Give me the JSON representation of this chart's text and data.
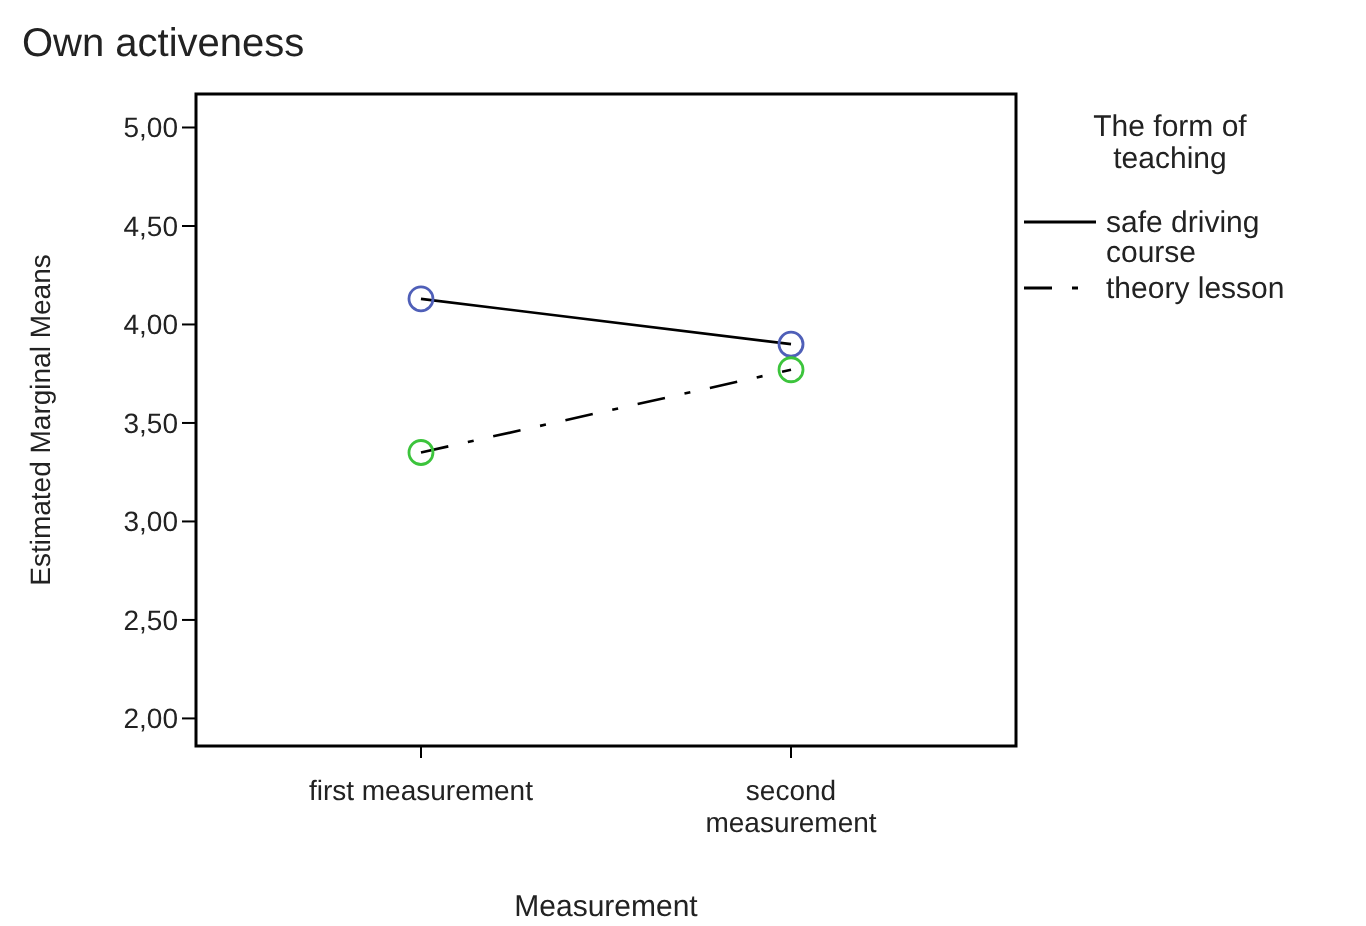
{
  "chart_data": {
    "type": "line",
    "title": "Own activeness",
    "xlabel": "Measurement",
    "ylabel": "Estimated Marginal Means",
    "legend_title": "The form of teaching",
    "categories": [
      "first measurement",
      "second measurement"
    ],
    "series": [
      {
        "name": "safe driving course",
        "color": "#4f5fb8",
        "values": [
          4.13,
          3.9
        ],
        "line_style": "solid"
      },
      {
        "name": "theory lesson",
        "color": "#3cc43c",
        "values": [
          3.35,
          3.77
        ],
        "line_style": "dashed"
      }
    ],
    "ylim": [
      1.86,
      5.17
    ],
    "yticks": [
      {
        "value": 2,
        "label": "2,00"
      },
      {
        "value": 2.5,
        "label": "2,50"
      },
      {
        "value": 3,
        "label": "3,00"
      },
      {
        "value": 3.5,
        "label": "3,50"
      },
      {
        "value": 4,
        "label": "4,00"
      },
      {
        "value": 4.5,
        "label": "4,50"
      },
      {
        "value": 5,
        "label": "5,00"
      }
    ],
    "marker": "circle",
    "legend": "right",
    "grid": false
  }
}
